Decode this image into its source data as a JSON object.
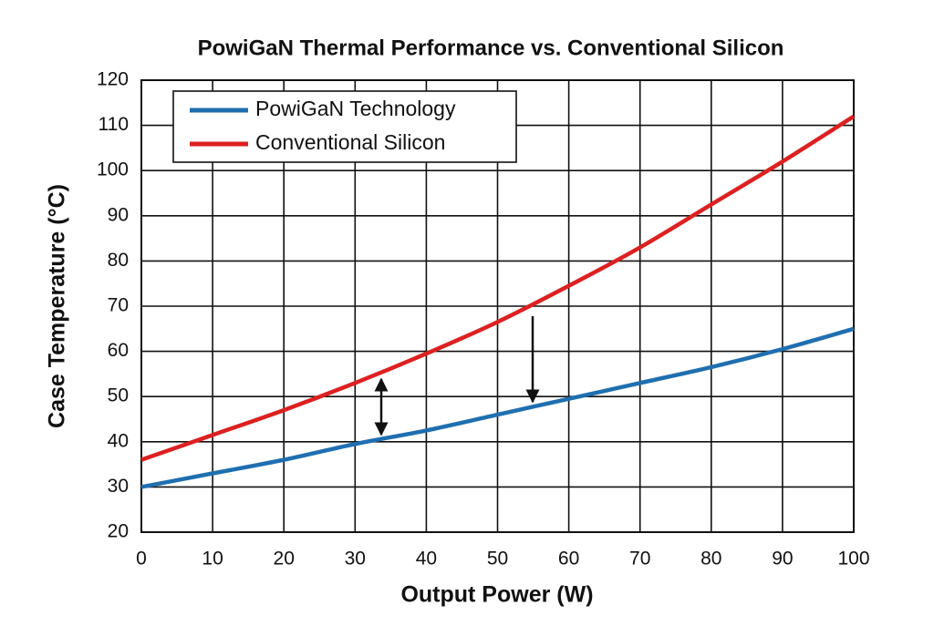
{
  "chart_data": {
    "type": "line",
    "title": "PowiGaN Thermal Performance vs. Conventional Silicon",
    "x_label": "Output Power (W)",
    "y_label": "Case Temperature (°C)",
    "x": [
      0,
      10,
      20,
      30,
      40,
      50,
      60,
      70,
      80,
      90,
      100
    ],
    "series": [
      {
        "name": "PowiGaN Technology",
        "color": "#1f6fb0",
        "values": [
          30,
          33,
          36,
          39.5,
          42.5,
          46,
          49.5,
          53,
          56.5,
          60.5,
          65
        ]
      },
      {
        "name": "Conventional Silicon",
        "color": "#dd2020",
        "values": [
          36,
          41.5,
          47,
          53,
          59.5,
          66.5,
          74.5,
          83,
          92.5,
          102,
          112
        ]
      }
    ],
    "xlim": [
      0,
      100
    ],
    "xticks": [
      0,
      10,
      20,
      30,
      40,
      50,
      60,
      70,
      80,
      90,
      100
    ],
    "ylim": [
      20,
      120
    ],
    "yticks": [
      20,
      30,
      40,
      50,
      60,
      70,
      80,
      90,
      100,
      110,
      120
    ],
    "grid": true,
    "legend": "upper left"
  }
}
